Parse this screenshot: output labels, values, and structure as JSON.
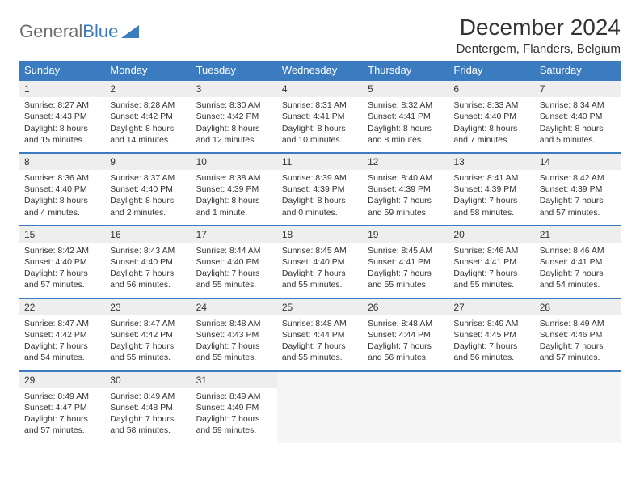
{
  "logo": {
    "text1": "General",
    "text2": "Blue"
  },
  "title": "December 2024",
  "location": "Dentergem, Flanders, Belgium",
  "colors": {
    "header_bg": "#3b7bbf",
    "daynum_bg": "#eeeeee",
    "row_border": "#3b7bbf"
  },
  "day_headers": [
    "Sunday",
    "Monday",
    "Tuesday",
    "Wednesday",
    "Thursday",
    "Friday",
    "Saturday"
  ],
  "weeks": [
    {
      "nums": [
        "1",
        "2",
        "3",
        "4",
        "5",
        "6",
        "7"
      ],
      "cells": [
        {
          "sr": "Sunrise: 8:27 AM",
          "ss": "Sunset: 4:43 PM",
          "d1": "Daylight: 8 hours",
          "d2": "and 15 minutes."
        },
        {
          "sr": "Sunrise: 8:28 AM",
          "ss": "Sunset: 4:42 PM",
          "d1": "Daylight: 8 hours",
          "d2": "and 14 minutes."
        },
        {
          "sr": "Sunrise: 8:30 AM",
          "ss": "Sunset: 4:42 PM",
          "d1": "Daylight: 8 hours",
          "d2": "and 12 minutes."
        },
        {
          "sr": "Sunrise: 8:31 AM",
          "ss": "Sunset: 4:41 PM",
          "d1": "Daylight: 8 hours",
          "d2": "and 10 minutes."
        },
        {
          "sr": "Sunrise: 8:32 AM",
          "ss": "Sunset: 4:41 PM",
          "d1": "Daylight: 8 hours",
          "d2": "and 8 minutes."
        },
        {
          "sr": "Sunrise: 8:33 AM",
          "ss": "Sunset: 4:40 PM",
          "d1": "Daylight: 8 hours",
          "d2": "and 7 minutes."
        },
        {
          "sr": "Sunrise: 8:34 AM",
          "ss": "Sunset: 4:40 PM",
          "d1": "Daylight: 8 hours",
          "d2": "and 5 minutes."
        }
      ]
    },
    {
      "nums": [
        "8",
        "9",
        "10",
        "11",
        "12",
        "13",
        "14"
      ],
      "cells": [
        {
          "sr": "Sunrise: 8:36 AM",
          "ss": "Sunset: 4:40 PM",
          "d1": "Daylight: 8 hours",
          "d2": "and 4 minutes."
        },
        {
          "sr": "Sunrise: 8:37 AM",
          "ss": "Sunset: 4:40 PM",
          "d1": "Daylight: 8 hours",
          "d2": "and 2 minutes."
        },
        {
          "sr": "Sunrise: 8:38 AM",
          "ss": "Sunset: 4:39 PM",
          "d1": "Daylight: 8 hours",
          "d2": "and 1 minute."
        },
        {
          "sr": "Sunrise: 8:39 AM",
          "ss": "Sunset: 4:39 PM",
          "d1": "Daylight: 8 hours",
          "d2": "and 0 minutes."
        },
        {
          "sr": "Sunrise: 8:40 AM",
          "ss": "Sunset: 4:39 PM",
          "d1": "Daylight: 7 hours",
          "d2": "and 59 minutes."
        },
        {
          "sr": "Sunrise: 8:41 AM",
          "ss": "Sunset: 4:39 PM",
          "d1": "Daylight: 7 hours",
          "d2": "and 58 minutes."
        },
        {
          "sr": "Sunrise: 8:42 AM",
          "ss": "Sunset: 4:39 PM",
          "d1": "Daylight: 7 hours",
          "d2": "and 57 minutes."
        }
      ]
    },
    {
      "nums": [
        "15",
        "16",
        "17",
        "18",
        "19",
        "20",
        "21"
      ],
      "cells": [
        {
          "sr": "Sunrise: 8:42 AM",
          "ss": "Sunset: 4:40 PM",
          "d1": "Daylight: 7 hours",
          "d2": "and 57 minutes."
        },
        {
          "sr": "Sunrise: 8:43 AM",
          "ss": "Sunset: 4:40 PM",
          "d1": "Daylight: 7 hours",
          "d2": "and 56 minutes."
        },
        {
          "sr": "Sunrise: 8:44 AM",
          "ss": "Sunset: 4:40 PM",
          "d1": "Daylight: 7 hours",
          "d2": "and 55 minutes."
        },
        {
          "sr": "Sunrise: 8:45 AM",
          "ss": "Sunset: 4:40 PM",
          "d1": "Daylight: 7 hours",
          "d2": "and 55 minutes."
        },
        {
          "sr": "Sunrise: 8:45 AM",
          "ss": "Sunset: 4:41 PM",
          "d1": "Daylight: 7 hours",
          "d2": "and 55 minutes."
        },
        {
          "sr": "Sunrise: 8:46 AM",
          "ss": "Sunset: 4:41 PM",
          "d1": "Daylight: 7 hours",
          "d2": "and 55 minutes."
        },
        {
          "sr": "Sunrise: 8:46 AM",
          "ss": "Sunset: 4:41 PM",
          "d1": "Daylight: 7 hours",
          "d2": "and 54 minutes."
        }
      ]
    },
    {
      "nums": [
        "22",
        "23",
        "24",
        "25",
        "26",
        "27",
        "28"
      ],
      "cells": [
        {
          "sr": "Sunrise: 8:47 AM",
          "ss": "Sunset: 4:42 PM",
          "d1": "Daylight: 7 hours",
          "d2": "and 54 minutes."
        },
        {
          "sr": "Sunrise: 8:47 AM",
          "ss": "Sunset: 4:42 PM",
          "d1": "Daylight: 7 hours",
          "d2": "and 55 minutes."
        },
        {
          "sr": "Sunrise: 8:48 AM",
          "ss": "Sunset: 4:43 PM",
          "d1": "Daylight: 7 hours",
          "d2": "and 55 minutes."
        },
        {
          "sr": "Sunrise: 8:48 AM",
          "ss": "Sunset: 4:44 PM",
          "d1": "Daylight: 7 hours",
          "d2": "and 55 minutes."
        },
        {
          "sr": "Sunrise: 8:48 AM",
          "ss": "Sunset: 4:44 PM",
          "d1": "Daylight: 7 hours",
          "d2": "and 56 minutes."
        },
        {
          "sr": "Sunrise: 8:49 AM",
          "ss": "Sunset: 4:45 PM",
          "d1": "Daylight: 7 hours",
          "d2": "and 56 minutes."
        },
        {
          "sr": "Sunrise: 8:49 AM",
          "ss": "Sunset: 4:46 PM",
          "d1": "Daylight: 7 hours",
          "d2": "and 57 minutes."
        }
      ]
    },
    {
      "nums": [
        "29",
        "30",
        "31",
        "",
        "",
        "",
        ""
      ],
      "cells": [
        {
          "sr": "Sunrise: 8:49 AM",
          "ss": "Sunset: 4:47 PM",
          "d1": "Daylight: 7 hours",
          "d2": "and 57 minutes."
        },
        {
          "sr": "Sunrise: 8:49 AM",
          "ss": "Sunset: 4:48 PM",
          "d1": "Daylight: 7 hours",
          "d2": "and 58 minutes."
        },
        {
          "sr": "Sunrise: 8:49 AM",
          "ss": "Sunset: 4:49 PM",
          "d1": "Daylight: 7 hours",
          "d2": "and 59 minutes."
        },
        {
          "empty": true
        },
        {
          "empty": true
        },
        {
          "empty": true
        },
        {
          "empty": true
        }
      ]
    }
  ]
}
